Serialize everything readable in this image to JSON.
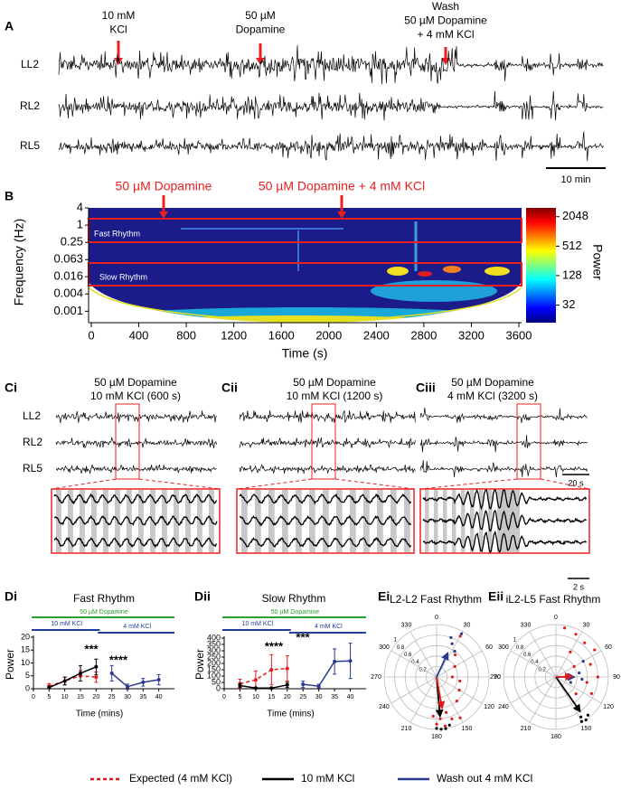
{
  "panel_a": {
    "label": "A",
    "annotations": [
      {
        "lines": [
          "10 mM",
          "KCl"
        ]
      },
      {
        "lines": [
          "50 µM",
          "Dopamine"
        ]
      },
      {
        "lines": [
          "Wash",
          "50 µM Dopamine",
          "+ 4 mM KCl"
        ]
      }
    ],
    "traces": [
      "LL2",
      "RL2",
      "RL5"
    ],
    "scale_bar": "10 min"
  },
  "panel_b": {
    "label": "B",
    "annotations": [
      "50 µM Dopamine",
      "50 µM Dopamine + 4 mM KCl"
    ],
    "ylabel": "Frequency (Hz)",
    "xlabel": "Time (s)",
    "log_y": true,
    "ylim": [
      0.0004,
      4
    ],
    "yticks": [
      4,
      1,
      0.25,
      0.063,
      0.016,
      0.004,
      0.001
    ],
    "xlim": [
      0,
      3600
    ],
    "xticks": [
      0,
      400,
      800,
      1200,
      1600,
      2000,
      2400,
      2800,
      3200,
      3600
    ],
    "bands": [
      "Fast Rhythm",
      "Slow Rhythm"
    ],
    "colorbar": {
      "label": "Power",
      "log": true,
      "clim": [
        14,
        3100
      ],
      "ticks": [
        32,
        128,
        512,
        2048
      ]
    }
  },
  "panel_c": {
    "traces": [
      "LL2",
      "RL2",
      "RL5"
    ],
    "subpanels": [
      {
        "label": "Ci",
        "title": [
          "50 µM Dopamine",
          "10 mM KCl (600 s)"
        ]
      },
      {
        "label": "Cii",
        "title": [
          "50 µM Dopamine",
          "10 mM KCl (1200 s)"
        ]
      },
      {
        "label": "Ciii",
        "title": [
          "50 µM Dopamine",
          "4 mM KCl (3200 s)"
        ],
        "scale_bars": [
          "20 s",
          "2 s"
        ]
      }
    ]
  },
  "panel_d": [
    {
      "label": "Di",
      "title": "Fast Rhythm",
      "ylabel": "Power",
      "xlabel": "Time (mins)",
      "conditions": [
        {
          "name": "50 µM Dopamine",
          "color": "#2ca02c"
        },
        {
          "name": "10 mM KCl",
          "color": "#1f3f99"
        },
        {
          "name": "4 mM KCl",
          "color": "#1f3f99"
        }
      ],
      "xlim": [
        0,
        45
      ],
      "xticks": [
        0,
        5,
        10,
        15,
        20,
        25,
        30,
        35,
        40
      ],
      "ylim": [
        0,
        20
      ],
      "yticks": [
        0,
        5,
        10,
        15,
        20
      ],
      "significance": [
        "***",
        "****"
      ],
      "series": [
        {
          "color": "#e31a1c",
          "dashed": true,
          "x": [
            5,
            10,
            15,
            20
          ],
          "values": [
            1,
            3,
            5,
            4.5
          ],
          "errors": [
            1,
            1.5,
            2,
            2
          ]
        },
        {
          "color": "#000000",
          "dashed": false,
          "x": [
            5,
            10,
            15,
            20
          ],
          "values": [
            0.5,
            3,
            6,
            8.5
          ],
          "errors": [
            0.5,
            1.5,
            3,
            3
          ]
        },
        {
          "color": "#2b3a8f",
          "dashed": false,
          "x": [
            25,
            30,
            35,
            40
          ],
          "values": [
            6,
            0.8,
            2.5,
            3.5
          ],
          "errors": [
            3,
            1,
            1.5,
            2
          ]
        }
      ]
    },
    {
      "label": "Dii",
      "title": "Slow Rhythm",
      "ylabel": "Power",
      "xlabel": "Time (mins)",
      "conditions": [
        {
          "name": "50 µM Dopamine",
          "color": "#2ca02c"
        },
        {
          "name": "10 mM KCl",
          "color": "#1f3f99"
        },
        {
          "name": "4 mM KCl",
          "color": "#1f3f99"
        }
      ],
      "xlim": [
        0,
        45
      ],
      "xticks": [
        0,
        5,
        10,
        15,
        20,
        25,
        30,
        35,
        40
      ],
      "ylim": [
        0,
        400
      ],
      "yticks": [
        0,
        50,
        100,
        150,
        200,
        250,
        300,
        350,
        400
      ],
      "significance": [
        "****",
        "***"
      ],
      "series": [
        {
          "color": "#e31a1c",
          "dashed": true,
          "x": [
            5,
            10,
            15,
            20
          ],
          "values": [
            40,
            70,
            150,
            160
          ],
          "errors": [
            35,
            70,
            120,
            100
          ]
        },
        {
          "color": "#000000",
          "dashed": false,
          "x": [
            5,
            10,
            15,
            20
          ],
          "values": [
            25,
            5,
            5,
            30
          ],
          "errors": [
            15,
            5,
            5,
            20
          ]
        },
        {
          "color": "#2b3a8f",
          "dashed": false,
          "x": [
            25,
            30,
            35,
            40
          ],
          "values": [
            35,
            20,
            215,
            220
          ],
          "errors": [
            25,
            15,
            100,
            140
          ]
        }
      ]
    }
  ],
  "panel_e": [
    {
      "label": "Ei",
      "title": "L2-L2 Fast Rhythm",
      "rlim": [
        0,
        1
      ],
      "angle_ticks": [
        0,
        30,
        60,
        90,
        120,
        150,
        180,
        210,
        240,
        270,
        300,
        330
      ],
      "r_ticks": [
        0.2,
        0.4,
        0.6,
        0.8,
        1
      ],
      "series": [
        {
          "color": "#e31a1c",
          "angles": [
            150,
            160,
            165,
            170,
            175,
            180,
            185,
            140,
            120,
            100,
            60,
            40,
            30,
            90
          ],
          "r": [
            0.9,
            0.85,
            0.7,
            0.95,
            0.8,
            0.9,
            0.75,
            0.6,
            0.5,
            0.45,
            0.4,
            0.55,
            0.9,
            0.3
          ],
          "mean_angle": 170,
          "mean_r": 0.6
        },
        {
          "color": "#000000",
          "angles": [
            170,
            175,
            180,
            165
          ],
          "r": [
            1,
            1,
            0.98,
            0.95
          ],
          "mean_angle": 175,
          "mean_r": 0.75
        },
        {
          "color": "#2b3a8f",
          "angles": [
            25,
            30,
            35,
            20
          ],
          "r": [
            0.7,
            0.95,
            0.6,
            0.8
          ],
          "mean_angle": 25,
          "mean_r": 0.5
        }
      ]
    },
    {
      "label": "Eii",
      "title": "iL2-L5 Fast Rhythm",
      "rlim": [
        0,
        1
      ],
      "angle_ticks": [
        0,
        30,
        60,
        90,
        120,
        150,
        180,
        210,
        240,
        270,
        300,
        330
      ],
      "r_ticks": [
        0.2,
        0.4,
        0.6,
        0.8,
        1
      ],
      "series": [
        {
          "color": "#e31a1c",
          "angles": [
            10,
            25,
            40,
            55,
            70,
            90,
            100,
            115,
            130,
            60,
            30
          ],
          "r": [
            0.95,
            0.9,
            0.85,
            0.9,
            0.7,
            0.8,
            0.6,
            0.75,
            0.5,
            0.4,
            0.55
          ],
          "mean_angle": 88,
          "mean_r": 0.3
        },
        {
          "color": "#000000",
          "angles": [
            140,
            145,
            150,
            148
          ],
          "r": [
            0.95,
            1,
            0.98,
            0.9
          ],
          "mean_angle": 145,
          "mean_r": 0.8
        },
        {
          "color": "#2b3a8f",
          "angles": [
            60,
            80,
            95,
            110
          ],
          "r": [
            0.6,
            0.45,
            0.5,
            0.3
          ],
          "mean_angle": 90,
          "mean_r": 0.35
        }
      ]
    }
  ],
  "legend": [
    {
      "name": "Expected (4 mM KCl)",
      "color": "#e31a1c",
      "dashed": true
    },
    {
      "name": "10 mM KCl",
      "color": "#000000",
      "dashed": false
    },
    {
      "name": "Wash out 4 mM KCl",
      "color": "#2b3a8f",
      "dashed": false
    }
  ]
}
